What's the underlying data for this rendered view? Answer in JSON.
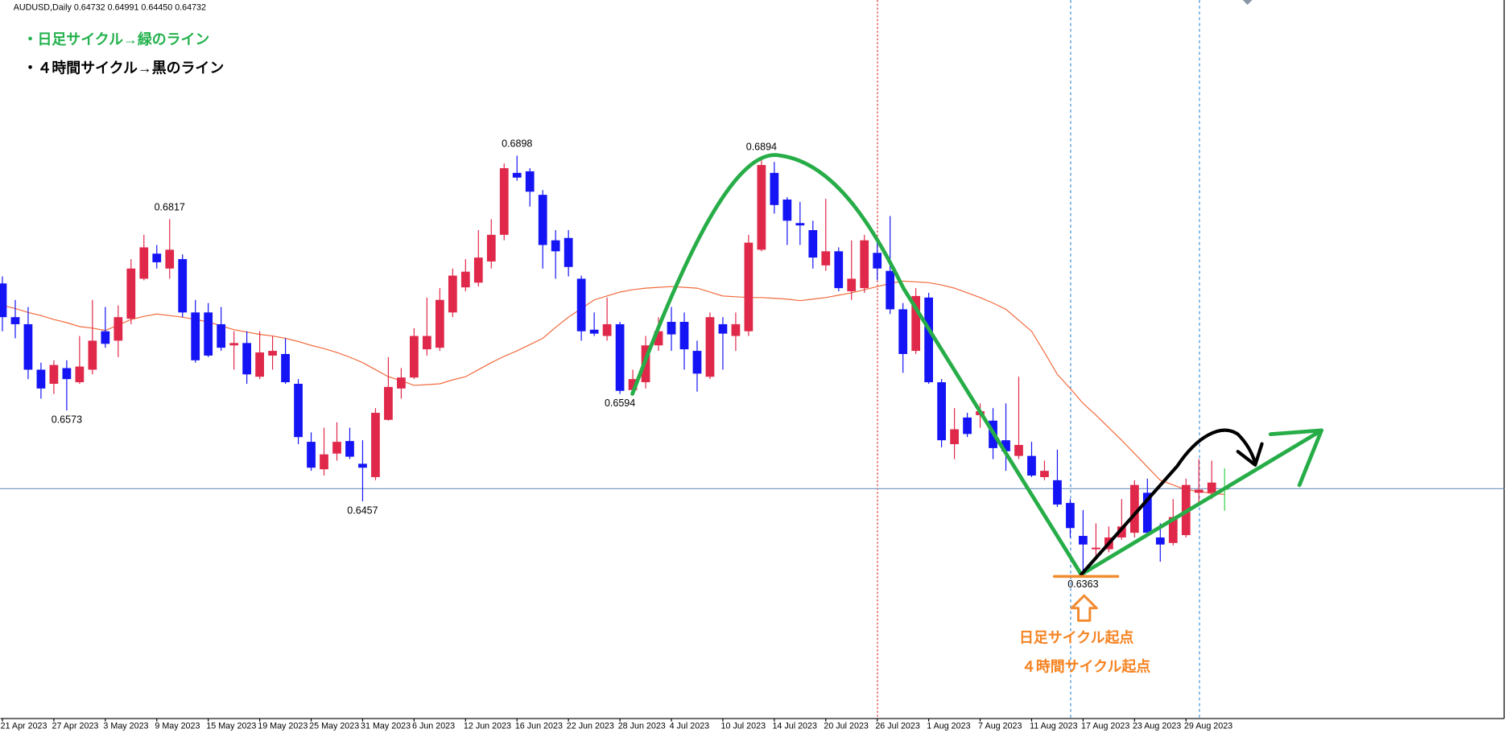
{
  "chart_data": {
    "type": "candlestick",
    "header": "AUDUSD,Daily  0.64732 0.64991 0.64450 0.64732",
    "categories": [
      "21 Apr 2023",
      null,
      null,
      null,
      "27 Apr 2023",
      null,
      null,
      null,
      "3 May 2023",
      null,
      null,
      null,
      "9 May 2023",
      null,
      null,
      null,
      "15 May 2023",
      null,
      null,
      null,
      "19 May 2023",
      null,
      null,
      null,
      "25 May 2023",
      null,
      null,
      null,
      "31 May 2023",
      null,
      null,
      null,
      "6 Jun 2023",
      null,
      null,
      null,
      "12 Jun 2023",
      null,
      null,
      null,
      "16 Jun 2023",
      null,
      null,
      null,
      "22 Jun 2023",
      null,
      null,
      null,
      "28 Jun 2023",
      null,
      null,
      null,
      "4 Jul 2023",
      null,
      null,
      null,
      "10 Jul 2023",
      null,
      null,
      null,
      "14 Jul 2023",
      null,
      null,
      null,
      "20 Jul 2023",
      null,
      null,
      null,
      "26 Jul 2023",
      null,
      null,
      null,
      "1 Aug 2023",
      null,
      null,
      null,
      "7 Aug 2023",
      null,
      null,
      null,
      "11 Aug 2023",
      null,
      null,
      null,
      "17 Aug 2023",
      null,
      null,
      null,
      "23 Aug 2023",
      null,
      null,
      null,
      "29 Aug 2023",
      null,
      null,
      null
    ],
    "open": [
      0.6735,
      0.6692,
      0.6683,
      0.6625,
      0.6607,
      0.6627,
      0.6609,
      0.6625,
      0.6674,
      0.6662,
      0.669,
      0.6741,
      0.6773,
      0.6754,
      0.6766,
      0.6698,
      0.6698,
      0.6683,
      0.6656,
      0.6659,
      0.6616,
      0.6643,
      0.6645,
      0.6607,
      0.6533,
      0.6498,
      0.6518,
      0.6534,
      0.6505,
      0.6488,
      0.6561,
      0.6601,
      0.6615,
      0.6651,
      0.6653,
      0.6698,
      0.673,
      0.6736,
      0.6763,
      0.6797,
      0.6876,
      0.6878,
      0.6848,
      0.679,
      0.6793,
      0.6741,
      0.6676,
      0.6668,
      0.6683,
      0.6599,
      0.6609,
      0.6656,
      0.6686,
      0.6686,
      0.6649,
      0.6616,
      0.6683,
      0.6668,
      0.6674,
      0.6778,
      0.6876,
      0.6842,
      0.6812,
      0.6803,
      0.6758,
      0.6776,
      0.6725,
      0.6729,
      0.6774,
      0.6751,
      0.6702,
      0.6649,
      0.6717,
      0.6609,
      0.653,
      0.6564,
      0.6567,
      0.656,
      0.6535,
      0.6515,
      0.6515,
      0.6488,
      0.6484,
      0.6455,
      0.6413,
      0.6396,
      0.6396,
      0.6411,
      0.6417,
      0.6468,
      0.6411,
      0.6404,
      0.6414,
      0.6468,
      0.6468,
      0.64732
    ],
    "high": [
      0.6744,
      0.6714,
      0.6705,
      0.6634,
      0.6637,
      0.6637,
      0.6668,
      0.6714,
      0.6705,
      0.6707,
      0.6766,
      0.6797,
      0.6784,
      0.6817,
      0.6772,
      0.6714,
      0.671,
      0.6705,
      0.6674,
      0.6674,
      0.6674,
      0.6668,
      0.6665,
      0.6613,
      0.6545,
      0.6551,
      0.6558,
      0.6551,
      0.6535,
      0.6576,
      0.6641,
      0.6627,
      0.6678,
      0.6717,
      0.6729,
      0.6754,
      0.6766,
      0.6803,
      0.6817,
      0.6888,
      0.6898,
      0.6882,
      0.6854,
      0.6803,
      0.6803,
      0.6745,
      0.6698,
      0.6717,
      0.6686,
      0.6625,
      0.6668,
      0.6692,
      0.6705,
      0.6698,
      0.6662,
      0.6698,
      0.6692,
      0.6698,
      0.6797,
      0.6894,
      0.689,
      0.6845,
      0.6839,
      0.6815,
      0.6843,
      0.6781,
      0.679,
      0.6797,
      0.6793,
      0.6821,
      0.671,
      0.6729,
      0.6723,
      0.6613,
      0.6576,
      0.657,
      0.6582,
      0.6576,
      0.6582,
      0.6616,
      0.6533,
      0.6509,
      0.6523,
      0.646,
      0.6446,
      0.6429,
      0.6425,
      0.646,
      0.6484,
      0.6486,
      0.6429,
      0.646,
      0.6486,
      0.6511,
      0.6509,
      0.64991
    ],
    "low": [
      0.6674,
      0.6665,
      0.6613,
      0.6588,
      0.6594,
      0.6573,
      0.6607,
      0.6619,
      0.6653,
      0.6641,
      0.6683,
      0.6739,
      0.6754,
      0.6741,
      0.6692,
      0.6634,
      0.6641,
      0.6649,
      0.6625,
      0.6607,
      0.6613,
      0.6625,
      0.6607,
      0.653,
      0.6496,
      0.649,
      0.6509,
      0.6511,
      0.6457,
      0.6484,
      0.656,
      0.6588,
      0.6613,
      0.6643,
      0.6649,
      0.6692,
      0.6725,
      0.6731,
      0.6754,
      0.679,
      0.6866,
      0.6833,
      0.6754,
      0.6741,
      0.6744,
      0.6662,
      0.6668,
      0.6662,
      0.6594,
      0.6596,
      0.6601,
      0.6649,
      0.6649,
      0.6625,
      0.6597,
      0.6613,
      0.6625,
      0.6649,
      0.6668,
      0.6776,
      0.6824,
      0.6784,
      0.6784,
      0.6754,
      0.6751,
      0.6725,
      0.6714,
      0.6723,
      0.6739,
      0.6696,
      0.6621,
      0.6645,
      0.6607,
      0.6526,
      0.6511,
      0.6539,
      0.6551,
      0.6511,
      0.6496,
      0.6511,
      0.6488,
      0.6484,
      0.645,
      0.6411,
      0.6363,
      0.6386,
      0.6392,
      0.6408,
      0.6411,
      0.6414,
      0.638,
      0.6401,
      0.6411,
      0.6453,
      0.646,
      0.6445
    ],
    "close": [
      0.6692,
      0.6683,
      0.6625,
      0.6601,
      0.6631,
      0.6613,
      0.6629,
      0.6662,
      0.6658,
      0.6692,
      0.6754,
      0.6781,
      0.6762,
      0.6778,
      0.6698,
      0.6637,
      0.6643,
      0.6653,
      0.6659,
      0.6619,
      0.6647,
      0.6649,
      0.6609,
      0.6539,
      0.65,
      0.6517,
      0.6533,
      0.6514,
      0.65,
      0.657,
      0.6603,
      0.6615,
      0.6668,
      0.6668,
      0.6714,
      0.6745,
      0.675,
      0.6768,
      0.6797,
      0.6882,
      0.687,
      0.6852,
      0.6784,
      0.6776,
      0.6756,
      0.6674,
      0.6671,
      0.6683,
      0.6598,
      0.6613,
      0.6656,
      0.6674,
      0.667,
      0.6651,
      0.662,
      0.6692,
      0.6671,
      0.6683,
      0.6787,
      0.6886,
      0.6835,
      0.6815,
      0.6809,
      0.6768,
      0.6776,
      0.6729,
      0.6741,
      0.679,
      0.6754,
      0.6702,
      0.6645,
      0.6719,
      0.6609,
      0.6535,
      0.6549,
      0.6543,
      0.6572,
      0.6525,
      0.6521,
      0.6529,
      0.649,
      0.6496,
      0.6453,
      0.6423,
      0.6402,
      0.6398,
      0.6411,
      0.6425,
      0.6478,
      0.6417,
      0.6402,
      0.6437,
      0.6478,
      0.6472,
      0.6481,
      0.64732
    ],
    "colors": {
      "up": "#e0284a",
      "down": "#1414f5",
      "doji": "#33d14a"
    },
    "ma": {
      "color": "#f26a3c",
      "values": [
        0.6707,
        0.6703,
        0.6698,
        0.6694,
        0.6689,
        0.6685,
        0.668,
        0.6678,
        0.6675,
        0.6682,
        0.6689,
        0.6693,
        0.6696,
        0.6694,
        0.6692,
        0.6689,
        0.6686,
        0.6681,
        0.6676,
        0.6673,
        0.667,
        0.6668,
        0.6665,
        0.6661,
        0.6656,
        0.6652,
        0.6647,
        0.6641,
        0.6634,
        0.6625,
        0.6616,
        0.6611,
        0.6605,
        0.6606,
        0.6607,
        0.6612,
        0.6616,
        0.6625,
        0.6634,
        0.6642,
        0.6649,
        0.6657,
        0.6665,
        0.6679,
        0.6692,
        0.6703,
        0.6714,
        0.6719,
        0.6724,
        0.6727,
        0.6729,
        0.673,
        0.6731,
        0.673,
        0.6729,
        0.6724,
        0.6719,
        0.6718,
        0.6717,
        0.6717,
        0.6716,
        0.6715,
        0.6713,
        0.6715,
        0.6717,
        0.672,
        0.6723,
        0.6727,
        0.6731,
        0.6735,
        0.6738,
        0.6737,
        0.6736,
        0.6733,
        0.6729,
        0.6723,
        0.6717,
        0.671,
        0.6702,
        0.6688,
        0.6674,
        0.6647,
        0.6619,
        0.6601,
        0.6582,
        0.6567,
        0.6551,
        0.6535,
        0.6518,
        0.6501,
        0.6484,
        0.6478,
        0.6472,
        0.647,
        0.6467,
        0.6466
      ]
    },
    "ylim": [
      0.618,
      0.70965
    ],
    "labeled_highs": [
      13,
      40,
      59
    ],
    "labeled_lows": [
      5,
      28,
      48,
      84
    ],
    "notes": [
      "・日足サイクル→緑のライン",
      "・４時間サイクル→黒のライン",
      "日足サイクル起点",
      "４時間サイクル起点"
    ]
  }
}
